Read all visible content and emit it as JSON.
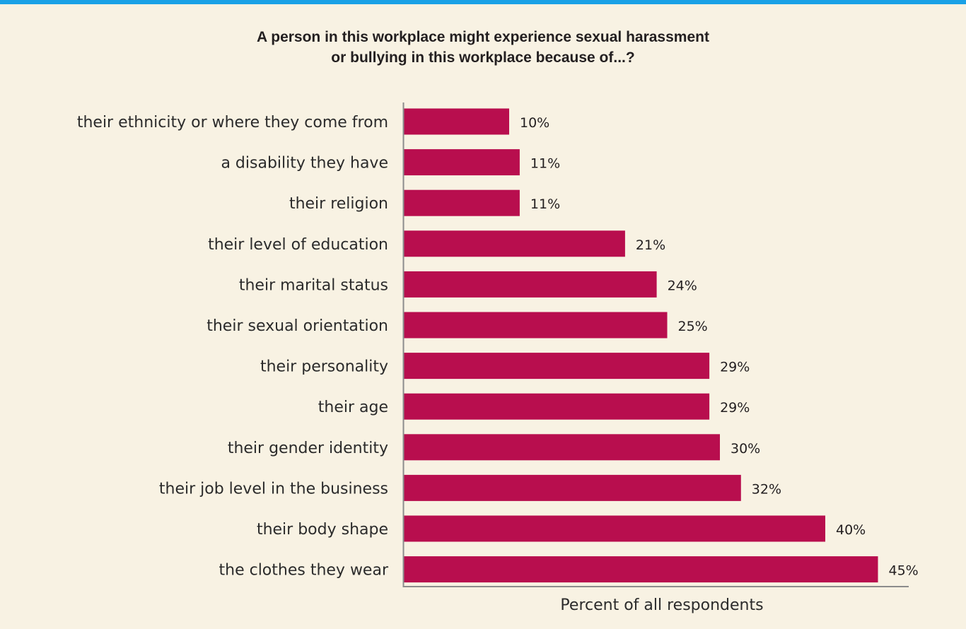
{
  "colors": {
    "top_rule": "#1aa1e6",
    "background": "#f8f2e3",
    "bar": "#b80e4e",
    "axis": "#8c8c8c"
  },
  "chart_data": {
    "type": "bar",
    "orientation": "horizontal",
    "title_lines": [
      "A person in this workplace might experience sexual harassment",
      "or bullying in this workplace because of...?"
    ],
    "xlabel": "Percent of all respondents",
    "ylabel": "",
    "xlim": [
      0,
      50
    ],
    "categories": [
      "their ethnicity or where they come from",
      "a disability they have",
      "their religion",
      "their level of education",
      "their marital status",
      "their sexual orientation",
      "their personality",
      "their age",
      "their gender identity",
      "their job level in the business",
      "their body shape",
      "the clothes they wear"
    ],
    "values": [
      10,
      11,
      11,
      21,
      24,
      25,
      29,
      29,
      30,
      32,
      40,
      45
    ],
    "value_labels": [
      "10%",
      "11%",
      "11%",
      "21%",
      "24%",
      "25%",
      "29%",
      "29%",
      "30%",
      "32%",
      "40%",
      "45%"
    ],
    "grid": false,
    "legend": "none"
  }
}
